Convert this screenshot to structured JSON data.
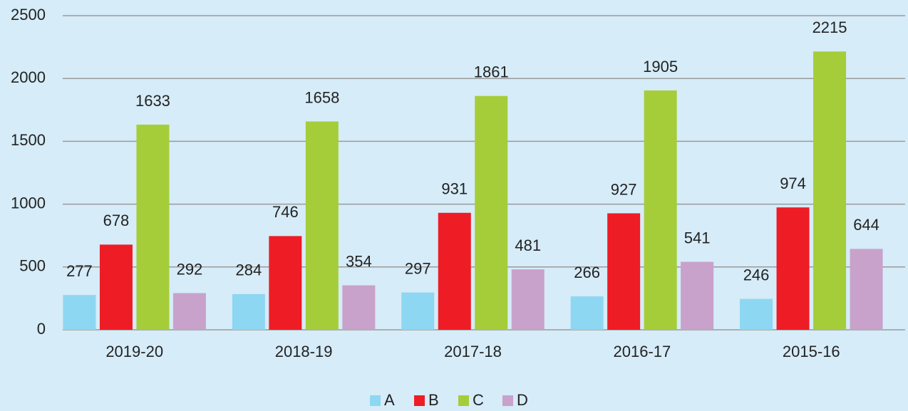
{
  "chart_data": {
    "type": "bar",
    "categories": [
      "2019-20",
      "2018-19",
      "2017-18",
      "2016-17",
      "2015-16"
    ],
    "series": [
      {
        "name": "A",
        "color": "#8dd7f2",
        "values": [
          277,
          284,
          297,
          266,
          246
        ]
      },
      {
        "name": "B",
        "color": "#ee1c25",
        "values": [
          678,
          746,
          931,
          927,
          974
        ]
      },
      {
        "name": "C",
        "color": "#a5cd39",
        "values": [
          1633,
          1658,
          1861,
          1905,
          2215
        ]
      },
      {
        "name": "D",
        "color": "#c8a2cb",
        "values": [
          292,
          354,
          481,
          541,
          644
        ]
      }
    ],
    "ylim": [
      0,
      2500
    ],
    "yticks": [
      0,
      500,
      1000,
      1500,
      2000,
      2500
    ],
    "grid": true,
    "legend": "bottom"
  }
}
